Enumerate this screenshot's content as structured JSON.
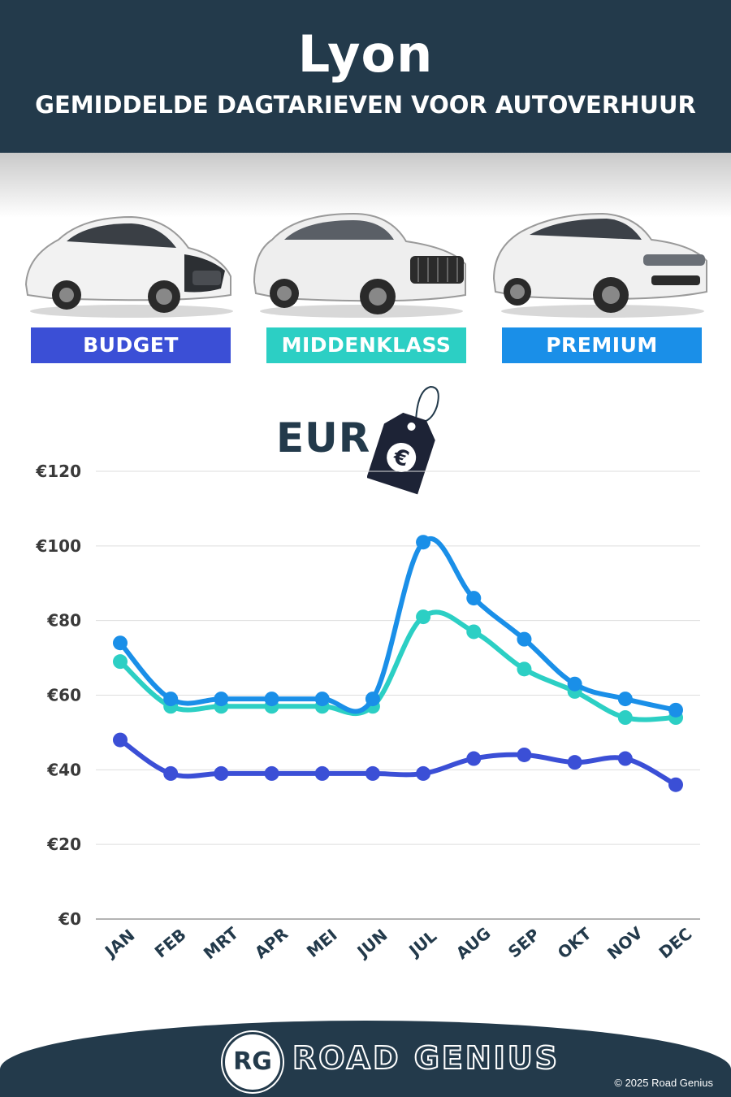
{
  "header": {
    "city": "Lyon",
    "subtitle": "GEMIDDELDE DAGTARIEVEN VOOR AUTOVERHUUR"
  },
  "categories": [
    {
      "label": "BUDGET",
      "color": "#3b4fd6",
      "icon": "budget-hatchback-car-image"
    },
    {
      "label": "MIDDENKLASS",
      "color": "#2ccfc4",
      "icon": "midsize-suv-car-image"
    },
    {
      "label": "PREMIUM",
      "color": "#1a8fe8",
      "icon": "premium-suv-car-image"
    }
  ],
  "currency_label": "EUR",
  "currency_icon": "euro-price-tag-icon",
  "chart_data": {
    "type": "line",
    "categories": [
      "JAN",
      "FEB",
      "MRT",
      "APR",
      "MEI",
      "JUN",
      "JUL",
      "AUG",
      "SEP",
      "OKT",
      "NOV",
      "DEC"
    ],
    "series": [
      {
        "name": "BUDGET",
        "color": "#3b4fd6",
        "values": [
          48,
          39,
          39,
          39,
          39,
          39,
          39,
          43,
          44,
          42,
          43,
          36
        ]
      },
      {
        "name": "MIDDENKLASS",
        "color": "#2ccfc4",
        "values": [
          69,
          57,
          57,
          57,
          57,
          57,
          81,
          77,
          67,
          61,
          54,
          54
        ]
      },
      {
        "name": "PREMIUM",
        "color": "#1a8fe8",
        "values": [
          74,
          59,
          59,
          59,
          59,
          59,
          101,
          86,
          75,
          63,
          59,
          56
        ]
      }
    ],
    "yticks": [
      "€0",
      "€20",
      "€40",
      "€60",
      "€80",
      "€100",
      "€120"
    ],
    "ylim": [
      0,
      120
    ],
    "grid": true
  },
  "footer": {
    "logo_text": "RG",
    "brand": "ROAD GENIUS",
    "copyright": "© 2025 Road Genius"
  }
}
